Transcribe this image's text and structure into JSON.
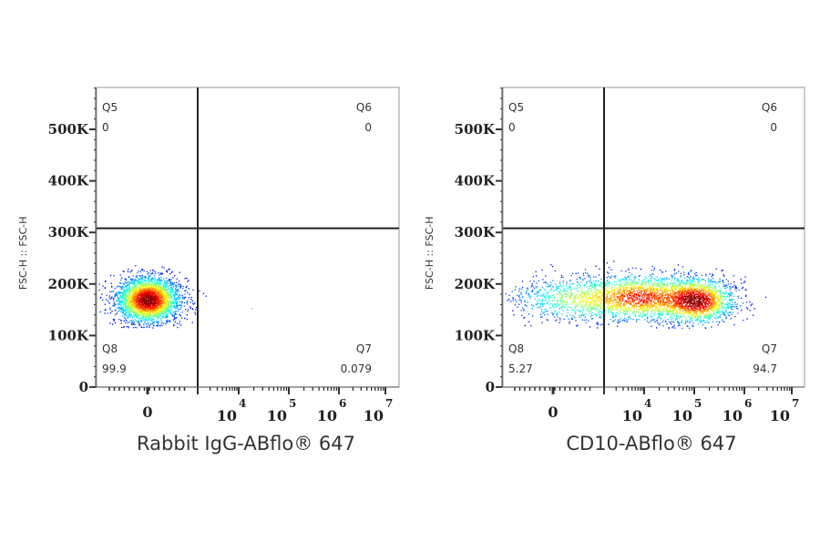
{
  "chart_data": [
    {
      "type": "scatter",
      "title": "",
      "xlabel": "Rabbit IgG-ABflo® 647",
      "ylabel": "FSC-H :: FSC-H",
      "x_scale": "biexponential",
      "x_ticks": [
        "0",
        "10^4",
        "10^5",
        "10^6",
        "10^7"
      ],
      "y_ticks": [
        "0",
        "100K",
        "200K",
        "300K",
        "400K",
        "500K"
      ],
      "ylim": [
        0,
        580000
      ],
      "y_gate": 308000,
      "quadrants": [
        {
          "name": "Q5",
          "value": "0"
        },
        {
          "name": "Q6",
          "value": "0"
        },
        {
          "name": "Q7",
          "value": "0.079"
        },
        {
          "name": "Q8",
          "value": "99.9"
        }
      ],
      "colormap": "jet density"
    },
    {
      "type": "scatter",
      "title": "",
      "xlabel": "CD10-ABflo® 647",
      "ylabel": "FSC-H :: FSC-H",
      "x_scale": "biexponential",
      "x_ticks": [
        "0",
        "10^4",
        "10^5",
        "10^6",
        "10^7"
      ],
      "y_ticks": [
        "0",
        "100K",
        "200K",
        "300K",
        "400K",
        "500K"
      ],
      "ylim": [
        0,
        580000
      ],
      "y_gate": 308000,
      "quadrants": [
        {
          "name": "Q5",
          "value": "0"
        },
        {
          "name": "Q6",
          "value": "0"
        },
        {
          "name": "Q7",
          "value": "94.7"
        },
        {
          "name": "Q8",
          "value": "5.27"
        }
      ],
      "colormap": "jet density"
    }
  ]
}
